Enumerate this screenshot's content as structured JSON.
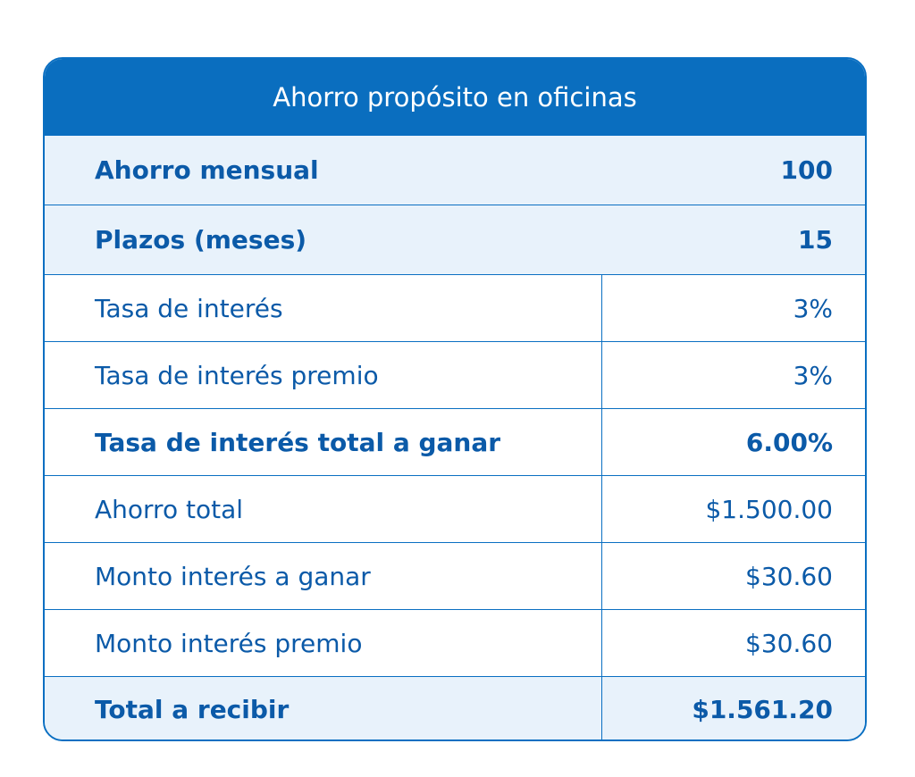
{
  "title": "Ahorro propósito en oficinas",
  "rows": [
    {
      "label": "Ahorro mensual",
      "value": "100"
    },
    {
      "label": "Plazos (meses)",
      "value": "15"
    },
    {
      "label": "Tasa de interés",
      "value": "3%"
    },
    {
      "label": "Tasa de interés premio",
      "value": "3%"
    },
    {
      "label": "Tasa de interés total a ganar",
      "value": "6.00%"
    },
    {
      "label": "Ahorro total",
      "value": "$1.500.00"
    },
    {
      "label": "Monto interés a ganar",
      "value": "$30.60"
    },
    {
      "label": "Monto interés premio",
      "value": "$30.60"
    },
    {
      "label": "Total a recibir",
      "value": "$1.561.20"
    }
  ],
  "colors": {
    "header_bg": "#0a6ebf",
    "text": "#0b5aa8",
    "row_shade": "#e8f2fb",
    "border": "#0a6fc2"
  }
}
